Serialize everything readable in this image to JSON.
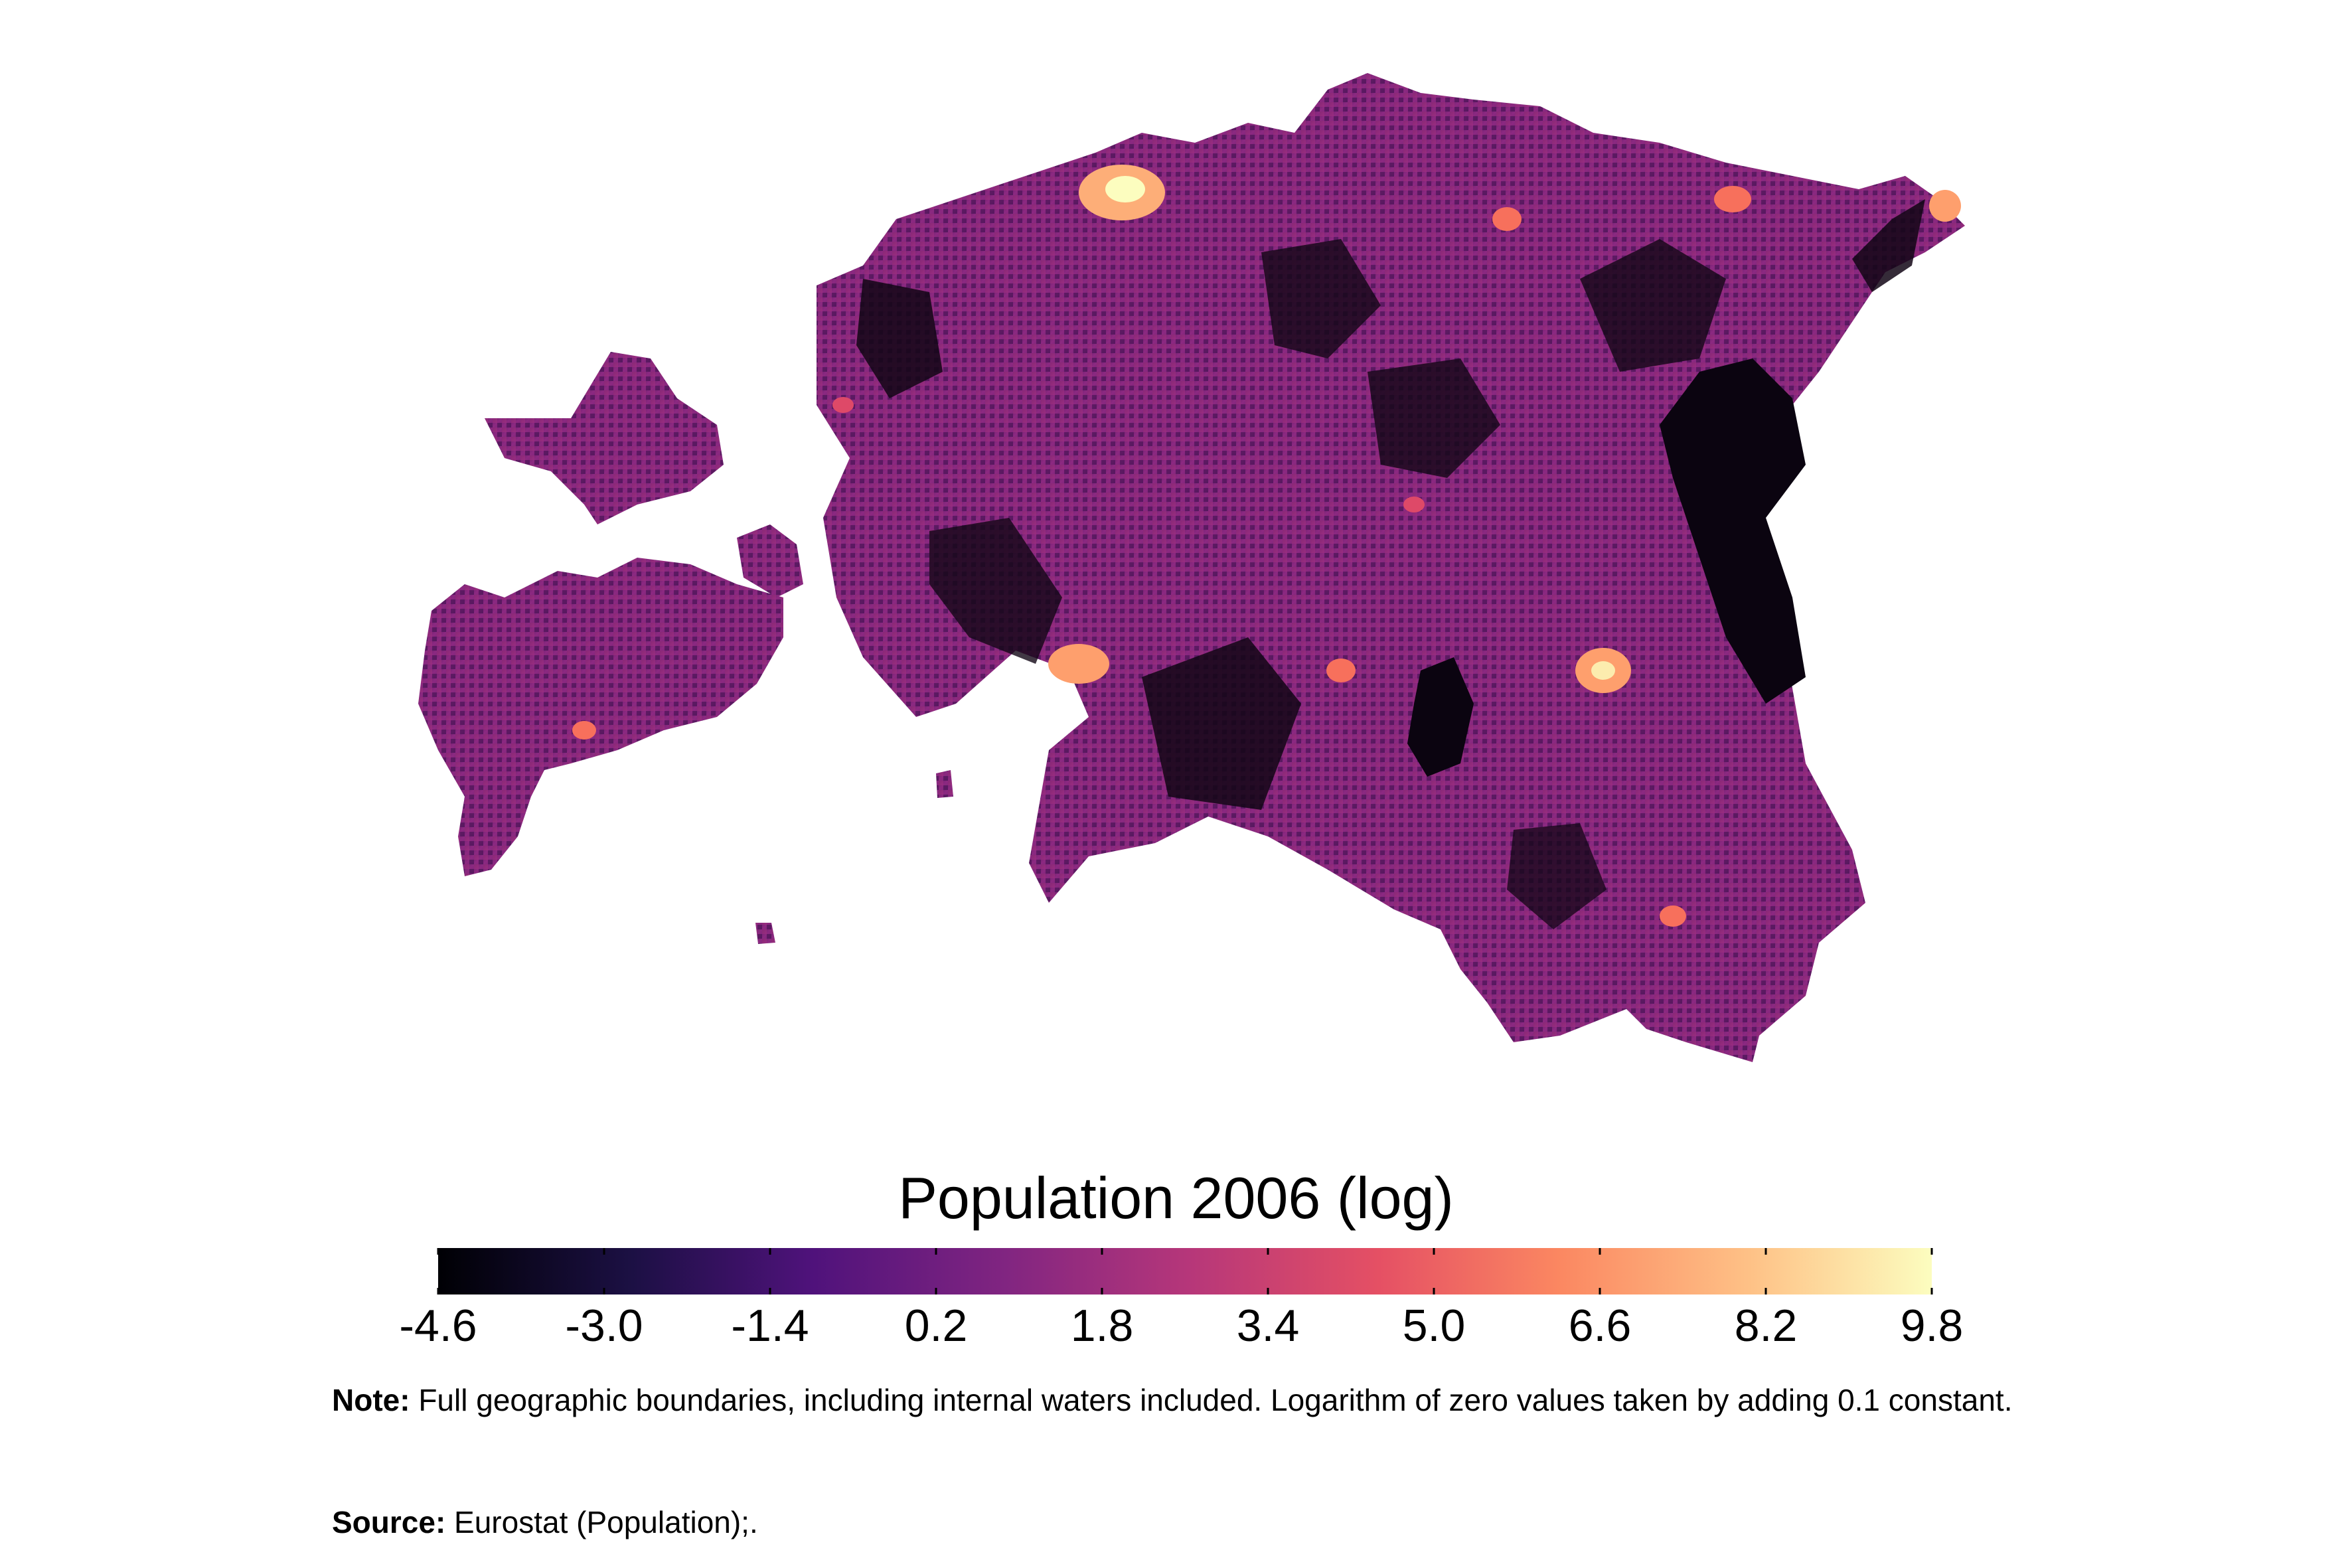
{
  "map": {
    "country": "Estonia",
    "cmap": "magma",
    "colors": [
      "#000004",
      "#3b0f70",
      "#8c2981",
      "#de4968",
      "#fe9f6d",
      "#fcfdbf"
    ]
  },
  "legend": {
    "title": "Population 2006 (log)",
    "min": -4.6,
    "max": 9.8,
    "ticks": [
      "-4.6",
      "-3.0",
      "-1.4",
      "0.2",
      "1.8",
      "3.4",
      "5.0",
      "6.6",
      "8.2",
      "9.8"
    ]
  },
  "note": {
    "label": "Note:",
    "text": "Full geographic boundaries, including internal waters included. Logarithm of zero values taken by adding 0.1 constant."
  },
  "source": {
    "label": "Source:",
    "text": "Eurostat (Population);."
  }
}
